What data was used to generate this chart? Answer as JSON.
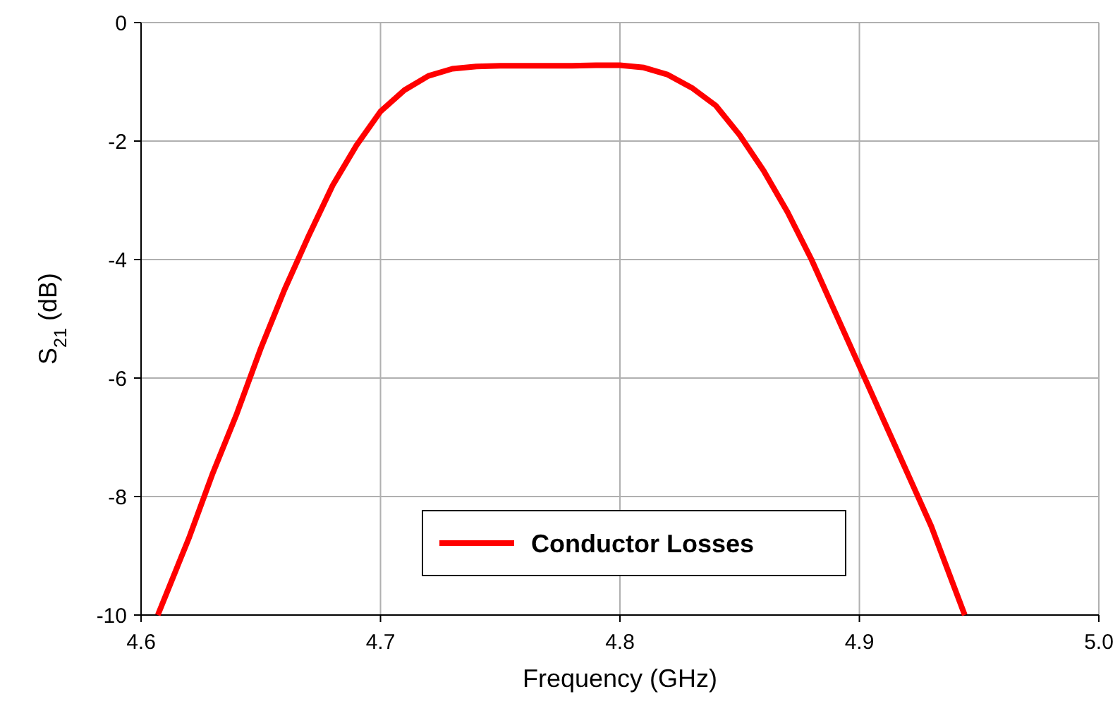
{
  "chart_data": {
    "type": "line",
    "xlabel": "Frequency (GHz)",
    "ylabel": "S$_{21}$ (dB)",
    "xlim": [
      4.6,
      5.0
    ],
    "xticks": [
      {
        "value": 4.6,
        "label": "4.6"
      },
      {
        "value": 4.7,
        "label": "4.7"
      },
      {
        "value": 4.8,
        "label": "4.8"
      },
      {
        "value": 4.9,
        "label": "4.9"
      },
      {
        "value": 5.0,
        "label": "5.0"
      }
    ],
    "ylim": [
      -10,
      0
    ],
    "yticks": [
      -10,
      -8,
      -6,
      -4,
      -2,
      0
    ],
    "grid": true,
    "legend": "bottom",
    "line_style": "solid",
    "marker": "none",
    "series": [
      {
        "name": "Conductor Losses",
        "color": "#ff0000",
        "x": [
          4.607,
          4.62,
          4.63,
          4.64,
          4.65,
          4.66,
          4.67,
          4.68,
          4.69,
          4.7,
          4.71,
          4.72,
          4.73,
          4.74,
          4.75,
          4.76,
          4.77,
          4.78,
          4.79,
          4.8,
          4.81,
          4.82,
          4.83,
          4.84,
          4.85,
          4.86,
          4.87,
          4.88,
          4.89,
          4.9,
          4.91,
          4.92,
          4.93,
          4.944
        ],
        "values": [
          -10,
          -8.7,
          -7.6,
          -6.6,
          -5.5,
          -4.5,
          -3.6,
          -2.75,
          -2.07,
          -1.5,
          -1.14,
          -0.9,
          -0.78,
          -0.74,
          -0.73,
          -0.73,
          -0.73,
          -0.73,
          -0.72,
          -0.72,
          -0.76,
          -0.88,
          -1.1,
          -1.4,
          -1.9,
          -2.5,
          -3.2,
          -4.0,
          -4.9,
          -5.8,
          -6.7,
          -7.6,
          -8.5,
          -10
        ]
      }
    ]
  }
}
